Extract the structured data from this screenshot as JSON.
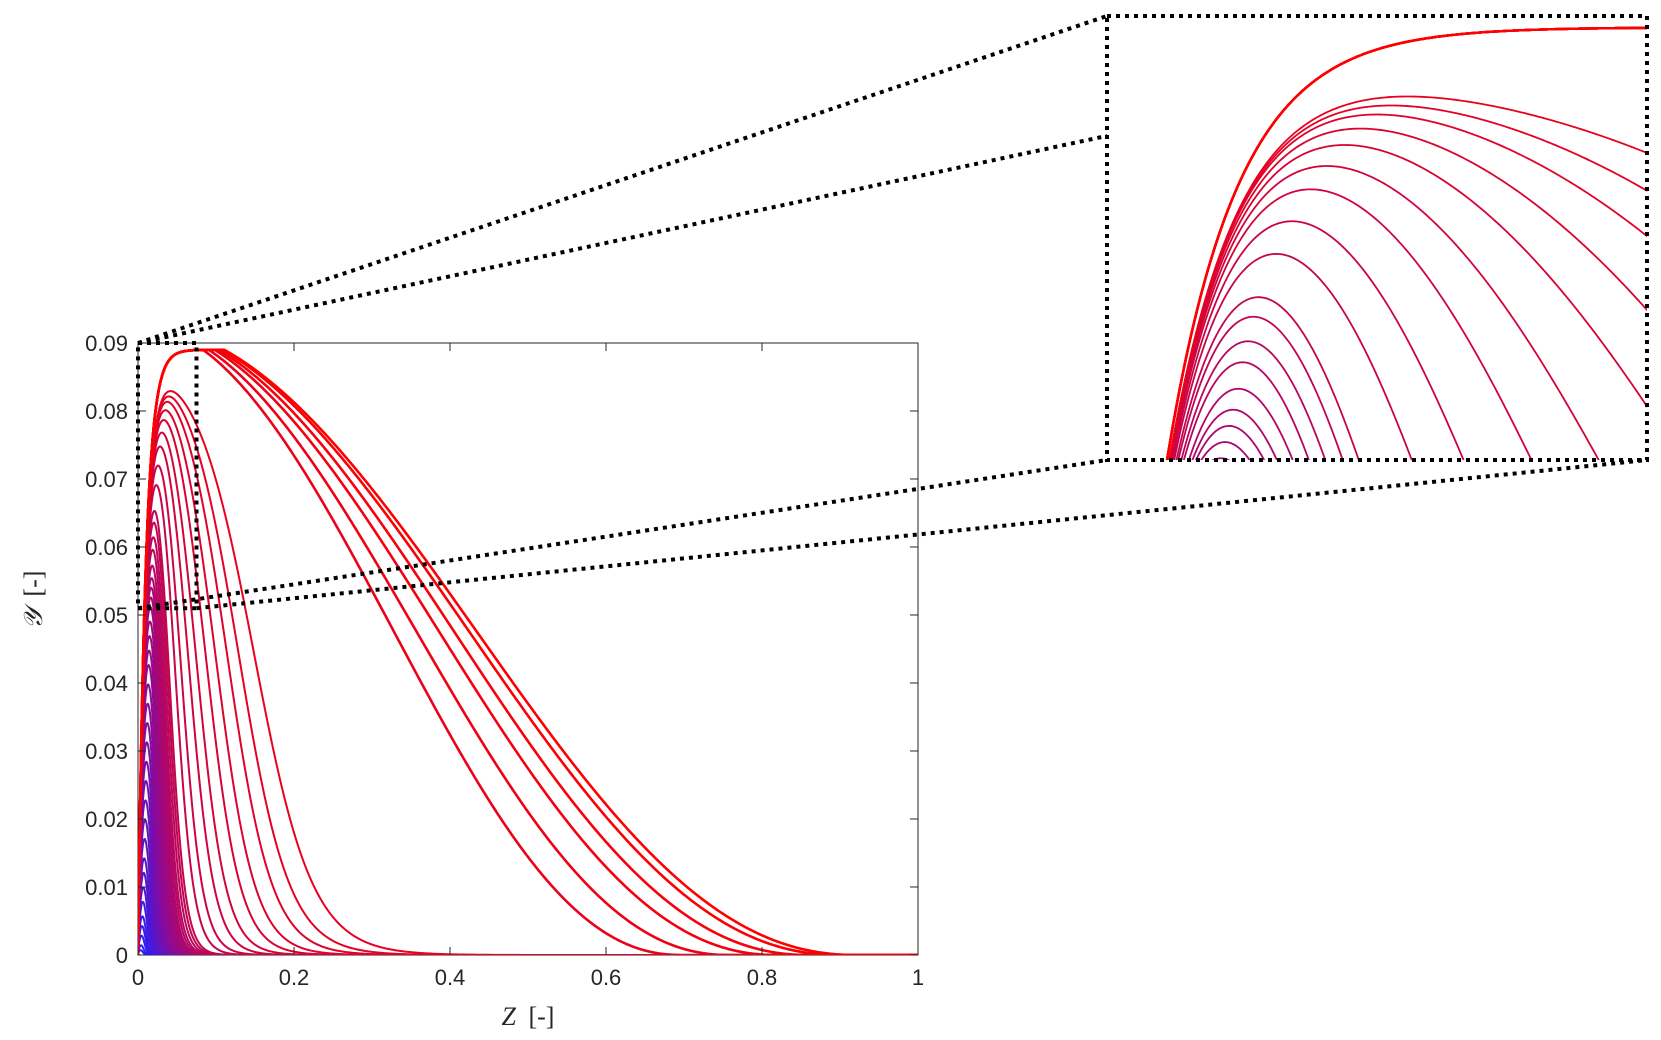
{
  "chart_data": {
    "type": "line",
    "xlabel": "Z",
    "xlabel_unit": "[-]",
    "ylabel": "𝒴",
    "ylabel_unit": "[-]",
    "xlim": [
      0,
      1
    ],
    "ylim": [
      0,
      0.09
    ],
    "xticks": [
      "0",
      "0.2",
      "0.4",
      "0.6",
      "0.8",
      "1"
    ],
    "yticks": [
      "0",
      "0.01",
      "0.02",
      "0.03",
      "0.04",
      "0.05",
      "0.06",
      "0.07",
      "0.08",
      "0.09"
    ],
    "grid": false,
    "color_gradient": {
      "start": "#2020ff",
      "middle": "#8a0a9a",
      "end": "#ff0000"
    },
    "profiles": {
      "peak_y": [
        0.001,
        0.002,
        0.004,
        0.006,
        0.008,
        0.011,
        0.014,
        0.017,
        0.02,
        0.024,
        0.028,
        0.032,
        0.036,
        0.04,
        0.044,
        0.048,
        0.052,
        0.056,
        0.06,
        0.063,
        0.066,
        0.069,
        0.072,
        0.074,
        0.076,
        0.078,
        0.08,
        0.082,
        0.083,
        0.0845,
        0.0855,
        0.0865,
        0.0872,
        0.0878,
        0.0882,
        0.0885,
        0.0888,
        0.089,
        0.089,
        0.089,
        0.089,
        0.089,
        0.089,
        0.089,
        0.089,
        0.089
      ],
      "falloff_z": [
        0.012,
        0.014,
        0.016,
        0.018,
        0.02,
        0.022,
        0.024,
        0.026,
        0.028,
        0.03,
        0.032,
        0.034,
        0.036,
        0.038,
        0.04,
        0.042,
        0.044,
        0.046,
        0.048,
        0.05,
        0.052,
        0.054,
        0.056,
        0.058,
        0.06,
        0.062,
        0.065,
        0.068,
        0.072,
        0.076,
        0.08,
        0.095,
        0.11,
        0.13,
        0.15,
        0.175,
        0.2,
        0.23,
        0.26,
        0.3,
        0.34,
        0.37,
        0.4,
        0.42,
        0.44,
        0.45
      ],
      "rise_z": 0.035
    },
    "inset": {
      "zoom_xlim": [
        0,
        0.075
      ],
      "zoom_ylim": [
        0.051,
        0.09
      ]
    }
  }
}
